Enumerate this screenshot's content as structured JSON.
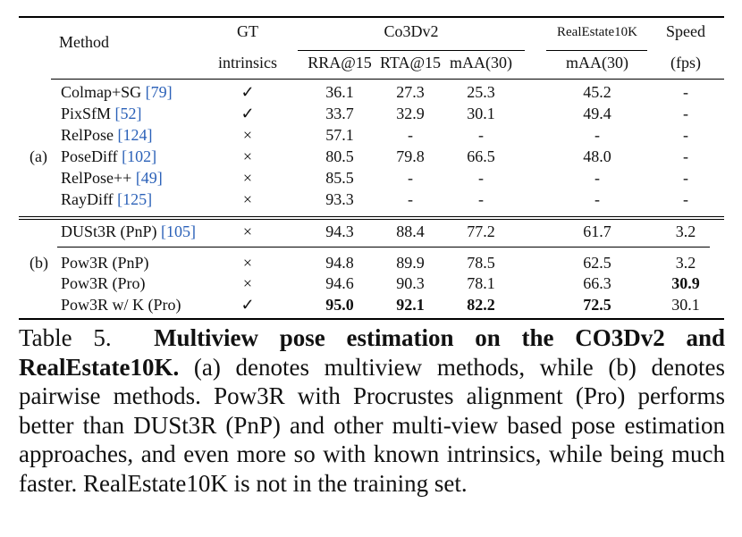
{
  "table": {
    "headers": {
      "method": "Method",
      "gt_line1": "GT",
      "gt_line2": "intrinsics",
      "co3d_group": "Co3Dv2",
      "re_group": "RealEstate10K",
      "speed_line1": "Speed",
      "speed_line2": "(fps)",
      "rra": "RRA@15",
      "rta": "RTA@15",
      "maa": "mAA(30)",
      "re_maa": "mAA(30)"
    },
    "group_labels": {
      "a": "(a)",
      "b": "(b)"
    },
    "rows": [
      {
        "name": "Colmap+SG ",
        "cite": "[79]",
        "gt": "✓",
        "rra": "36.1",
        "rta": "27.3",
        "maa": "25.3",
        "re": "45.2",
        "speed": "-"
      },
      {
        "name": "PixSfM ",
        "cite": "[52]",
        "gt": "✓",
        "rra": "33.7",
        "rta": "32.9",
        "maa": "30.1",
        "re": "49.4",
        "speed": "-"
      },
      {
        "name": "RelPose ",
        "cite": "[124]",
        "gt": "×",
        "rra": "57.1",
        "rta": "-",
        "maa": "-",
        "re": "-",
        "speed": "-"
      },
      {
        "name": "PoseDiff ",
        "cite": "[102]",
        "gt": "×",
        "rra": "80.5",
        "rta": "79.8",
        "maa": "66.5",
        "re": "48.0",
        "speed": "-"
      },
      {
        "name": "RelPose++ ",
        "cite": "[49]",
        "gt": "×",
        "rra": "85.5",
        "rta": "-",
        "maa": "-",
        "re": "-",
        "speed": "-"
      },
      {
        "name": "RayDiff ",
        "cite": "[125]",
        "gt": "×",
        "rra": "93.3",
        "rta": "-",
        "maa": "-",
        "re": "-",
        "speed": "-"
      },
      {
        "name": "DUSt3R (PnP) ",
        "cite": "[105]",
        "gt": "×",
        "rra": "94.3",
        "rta": "88.4",
        "maa": "77.2",
        "re": "61.7",
        "speed": "3.2"
      },
      {
        "name": "Pow3R (PnP)",
        "cite": "",
        "gt": "×",
        "rra": "94.8",
        "rta": "89.9",
        "maa": "78.5",
        "re": "62.5",
        "speed": "3.2"
      },
      {
        "name": "Pow3R (Pro)",
        "cite": "",
        "gt": "×",
        "rra": "94.6",
        "rta": "90.3",
        "maa": "78.1",
        "re": "66.3",
        "speed": "30.9"
      },
      {
        "name": "Pow3R w/ K (Pro)",
        "cite": "",
        "gt": "✓",
        "rra": "95.0",
        "rta": "92.1",
        "maa": "82.2",
        "re": "72.5",
        "speed": "30.1"
      }
    ]
  },
  "caption": {
    "label": "Table 5.",
    "title": "Multiview pose estimation on the CO3Dv2 and RealEstate10K.",
    "body": "(a) denotes multiview methods, while (b) denotes pairwise methods. Pow3R with Procrustes alignment (Pro) performs better than DUSt3R (PnP) and other multi-view based pose estimation approaches, and even more so with known intrinsics, while being much faster. RealEstate10K is not in the training set."
  }
}
